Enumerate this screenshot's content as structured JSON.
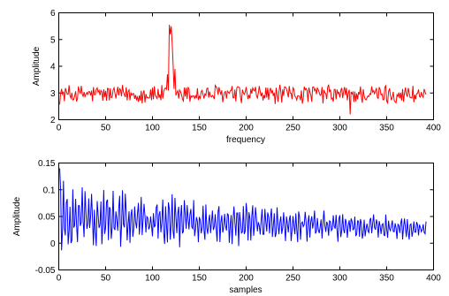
{
  "chart_data": [
    {
      "type": "line",
      "title": "",
      "xlabel": "frequency",
      "ylabel": "Amplitude",
      "xlim": [
        0,
        400
      ],
      "ylim": [
        2,
        6
      ],
      "xticks": [
        0,
        50,
        100,
        150,
        200,
        250,
        300,
        350,
        400
      ],
      "yticks": [
        2,
        3,
        4,
        5,
        6
      ],
      "grid": false,
      "color": "#ff0000",
      "series": [
        {
          "n_points": 392,
          "x_start": 1,
          "x_step": 1,
          "baseline": 2.95,
          "noise_amplitude": 0.32,
          "peaks": [
            {
              "x": 118,
              "y": 5.55
            },
            {
              "x": 119,
              "y": 5.2
            },
            {
              "x": 120,
              "y": 5.5
            },
            {
              "x": 121,
              "y": 4.9
            },
            {
              "x": 122,
              "y": 4.1
            },
            {
              "x": 124,
              "y": 3.9
            },
            {
              "x": 116,
              "y": 3.7
            },
            {
              "x": 311,
              "y": 2.2
            },
            {
              "x": 390,
              "y": 3.15
            }
          ],
          "x_max": 392
        }
      ]
    },
    {
      "type": "line",
      "title": "",
      "xlabel": "samples",
      "ylabel": "Amplitude",
      "xlim": [
        0,
        400
      ],
      "ylim": [
        -0.05,
        0.15
      ],
      "xticks": [
        0,
        50,
        100,
        150,
        200,
        250,
        300,
        350,
        400
      ],
      "yticks": [
        -0.05,
        0,
        0.05,
        0.1,
        0.15
      ],
      "ytick_labels": [
        "-0.05",
        "0",
        "0.05",
        "0.1",
        "0.15"
      ],
      "grid": false,
      "color": "#0000ff",
      "series": [
        {
          "n_points": 392,
          "x_start": 1,
          "x_step": 1,
          "center": 0.045,
          "start_amplitude": 0.07,
          "end_amplitude": 0.018,
          "end_center": 0.027,
          "first_value": 0.14,
          "x_max": 392
        }
      ]
    }
  ]
}
